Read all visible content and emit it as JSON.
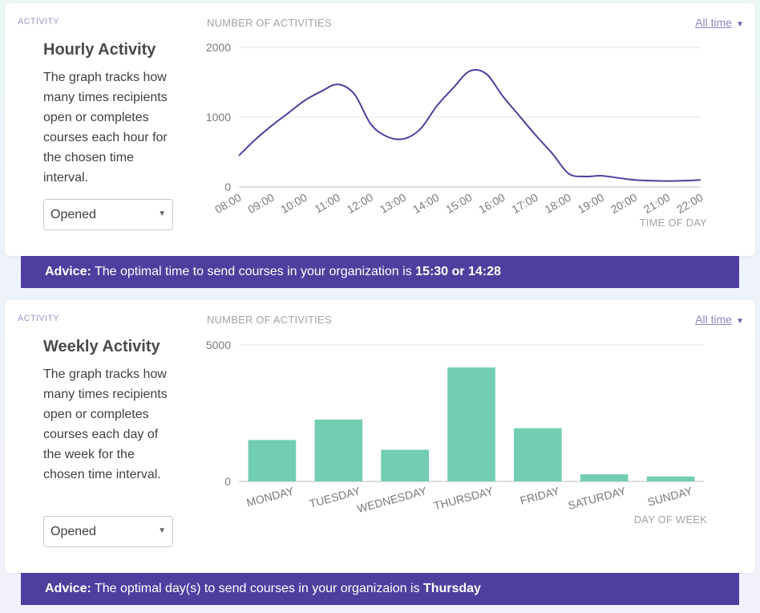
{
  "colors": {
    "line": "#4e3f9e",
    "bar": "#72cdb3",
    "advice_bg": "#4e3f9e",
    "eyebrow": "#9d98c9"
  },
  "hourly": {
    "eyebrow": "ACTIVITY",
    "title": "Hourly Activity",
    "description": "The graph tracks how many times recipients open or completes courses each hour for the chosen time interval.",
    "select_value": "Opened",
    "time_filter": "All time",
    "advice_label": "Advice:",
    "advice_text": " The optimal time to send courses in your organization is ",
    "advice_value": "15:30 or 14:28"
  },
  "weekly": {
    "eyebrow": "ACTIVITY",
    "title": "Weekly Activity",
    "description": "The graph tracks how many times recipients open or completes courses each day of the week for the chosen time interval.",
    "select_value": "Opened",
    "time_filter": "All time",
    "advice_label": "Advice:",
    "advice_text": " The optimal day(s) to send courses in your organizaion is ",
    "advice_value": "Thursday"
  },
  "chart_data": [
    {
      "type": "line",
      "ylabel": "NUMBER OF ACTIVITIES",
      "xlabel": "TIME OF DAY",
      "ylim": [
        0,
        2000
      ],
      "yticks": [
        "2000",
        "1000",
        "0"
      ],
      "categories": [
        "08:00",
        "09:00",
        "10:00",
        "11:00",
        "12:00",
        "13:00",
        "14:00",
        "15:00",
        "16:00",
        "17:00",
        "18:00",
        "19:00",
        "20:00",
        "21:00",
        "22:00"
      ],
      "x": [
        8,
        8.5,
        9,
        9.5,
        10,
        10.5,
        11,
        11.5,
        12,
        12.5,
        13,
        13.5,
        14,
        14.5,
        15,
        15.5,
        16,
        16.5,
        17,
        17.5,
        18,
        18.5,
        19,
        19.5,
        20,
        20.5,
        21,
        21.5,
        22
      ],
      "values": [
        450,
        680,
        880,
        1060,
        1240,
        1370,
        1470,
        1330,
        900,
        720,
        690,
        830,
        1160,
        1420,
        1660,
        1620,
        1300,
        1020,
        740,
        480,
        190,
        150,
        160,
        130,
        100,
        90,
        85,
        90,
        100
      ],
      "grid": true
    },
    {
      "type": "bar",
      "ylabel": "NUMBER OF ACTIVITIES",
      "xlabel": "DAY OF WEEK",
      "ylim": [
        0,
        5000
      ],
      "yticks": [
        "5000",
        "0"
      ],
      "categories": [
        "MONDAY",
        "TUESDAY",
        "WEDNESDAY",
        "THURSDAY",
        "FRIDAY",
        "SATURDAY",
        "SUNDAY"
      ],
      "values": [
        1520,
        2270,
        1160,
        4180,
        1950,
        260,
        180
      ],
      "grid": true
    }
  ]
}
